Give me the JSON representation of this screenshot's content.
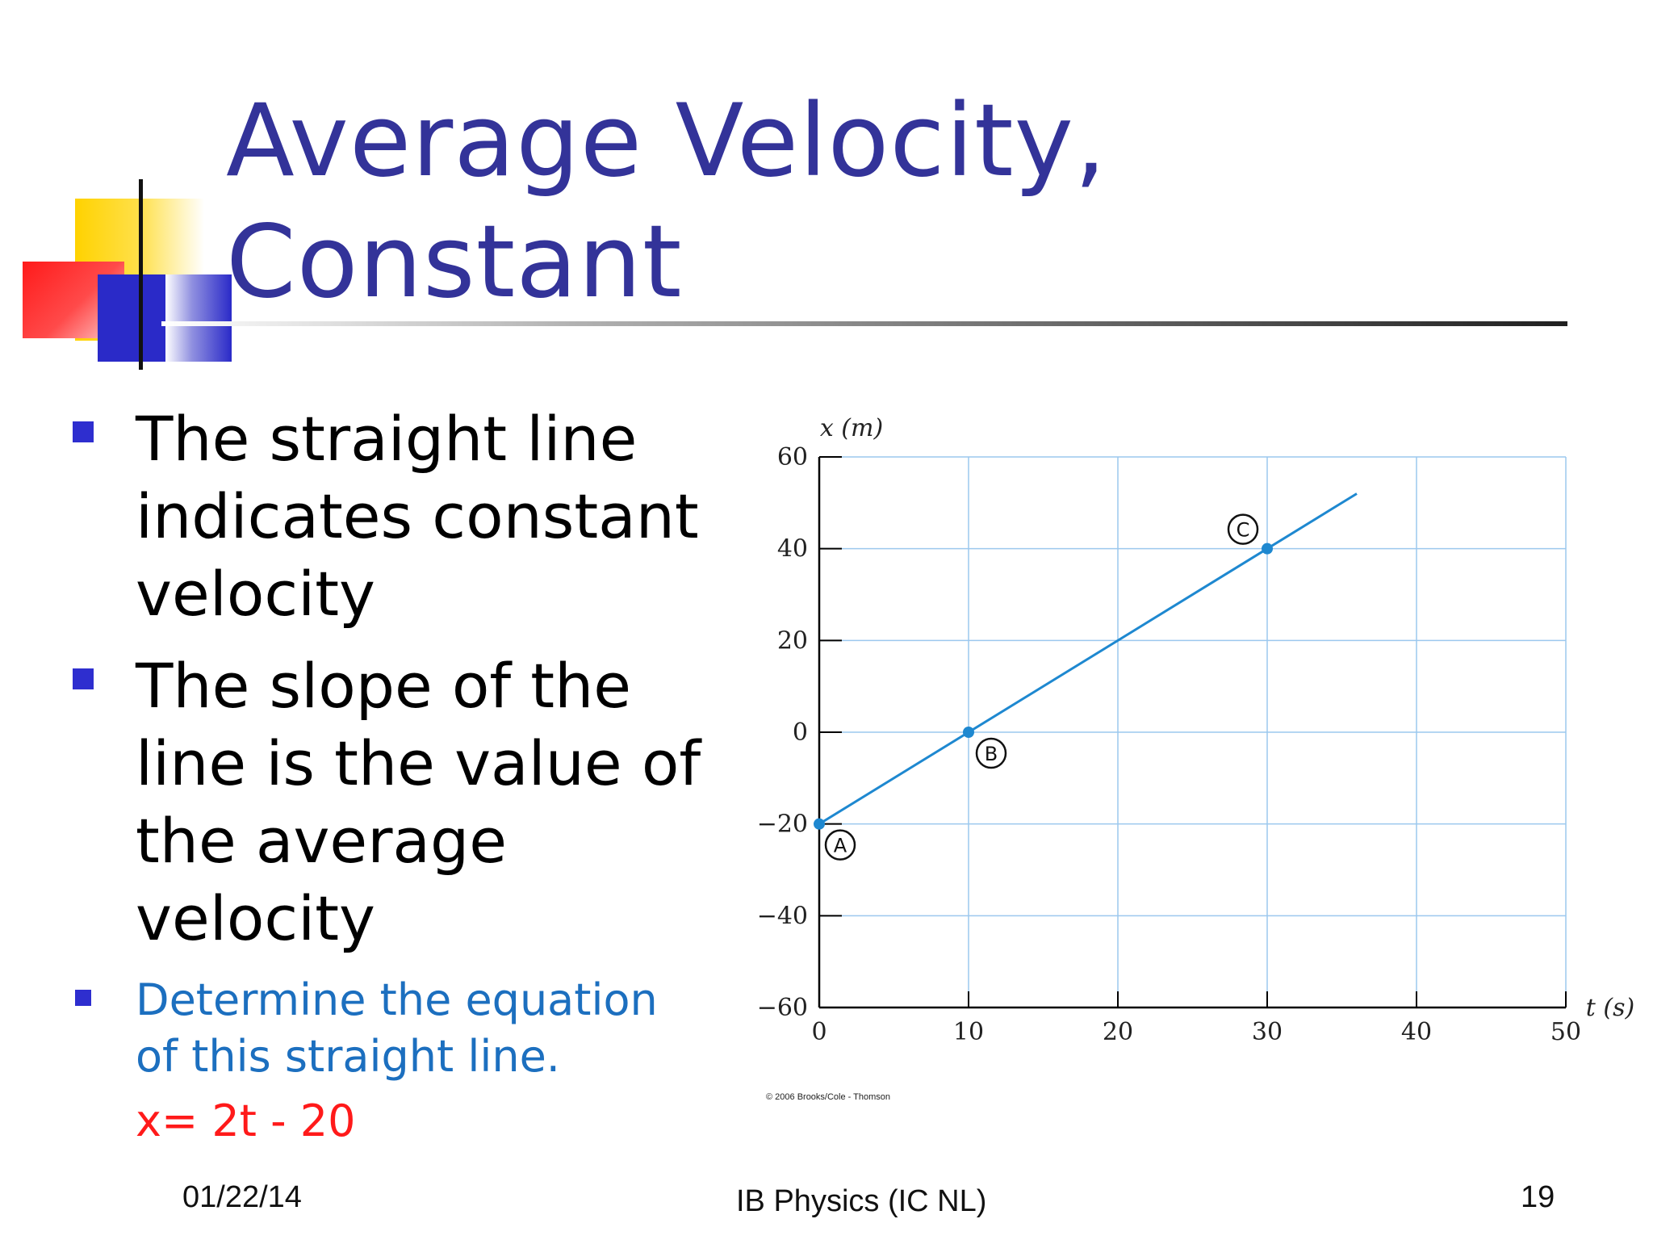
{
  "title": {
    "line1": "Average Velocity,",
    "line2": "Constant"
  },
  "bullets": [
    {
      "lines": [
        "The straight line",
        "indicates constant",
        "velocity"
      ]
    },
    {
      "lines": [
        "The slope of the",
        "line is the value of",
        "the average",
        "velocity"
      ]
    }
  ],
  "question": {
    "lines": [
      "Determine the equation",
      "of this straight line."
    ],
    "answer": "x= 2t - 20"
  },
  "footer": {
    "date": "01/22/14",
    "center": "IB Physics (IC NL)",
    "page": "19"
  },
  "colors": {
    "title": "#333399",
    "bullet_marker": "#2e2ecf",
    "question_text": "#1c6fbf",
    "answer_text": "#ff1a1a",
    "grid": "#9cc8ee",
    "line": "#1e88d0"
  },
  "chart_data": {
    "type": "line",
    "xlabel": "t (s)",
    "ylabel": "x (m)",
    "xlim": [
      0,
      50
    ],
    "ylim": [
      -60,
      60
    ],
    "x_ticks": [
      0,
      10,
      20,
      30,
      40,
      50
    ],
    "y_ticks": [
      60,
      40,
      20,
      0,
      -20,
      -40,
      -60
    ],
    "y_tick_labels": [
      "60",
      "40",
      "20",
      "0",
      "−20",
      "−40",
      "−60"
    ],
    "grid": true,
    "series": [
      {
        "x": [
          0,
          36
        ],
        "y": [
          -20,
          52
        ]
      }
    ],
    "points": [
      {
        "label": "A",
        "x": 0,
        "y": -20
      },
      {
        "label": "B",
        "x": 10,
        "y": 0
      },
      {
        "label": "C",
        "x": 30,
        "y": 40
      }
    ],
    "credit": "© 2006 Brooks/Cole - Thomson"
  }
}
